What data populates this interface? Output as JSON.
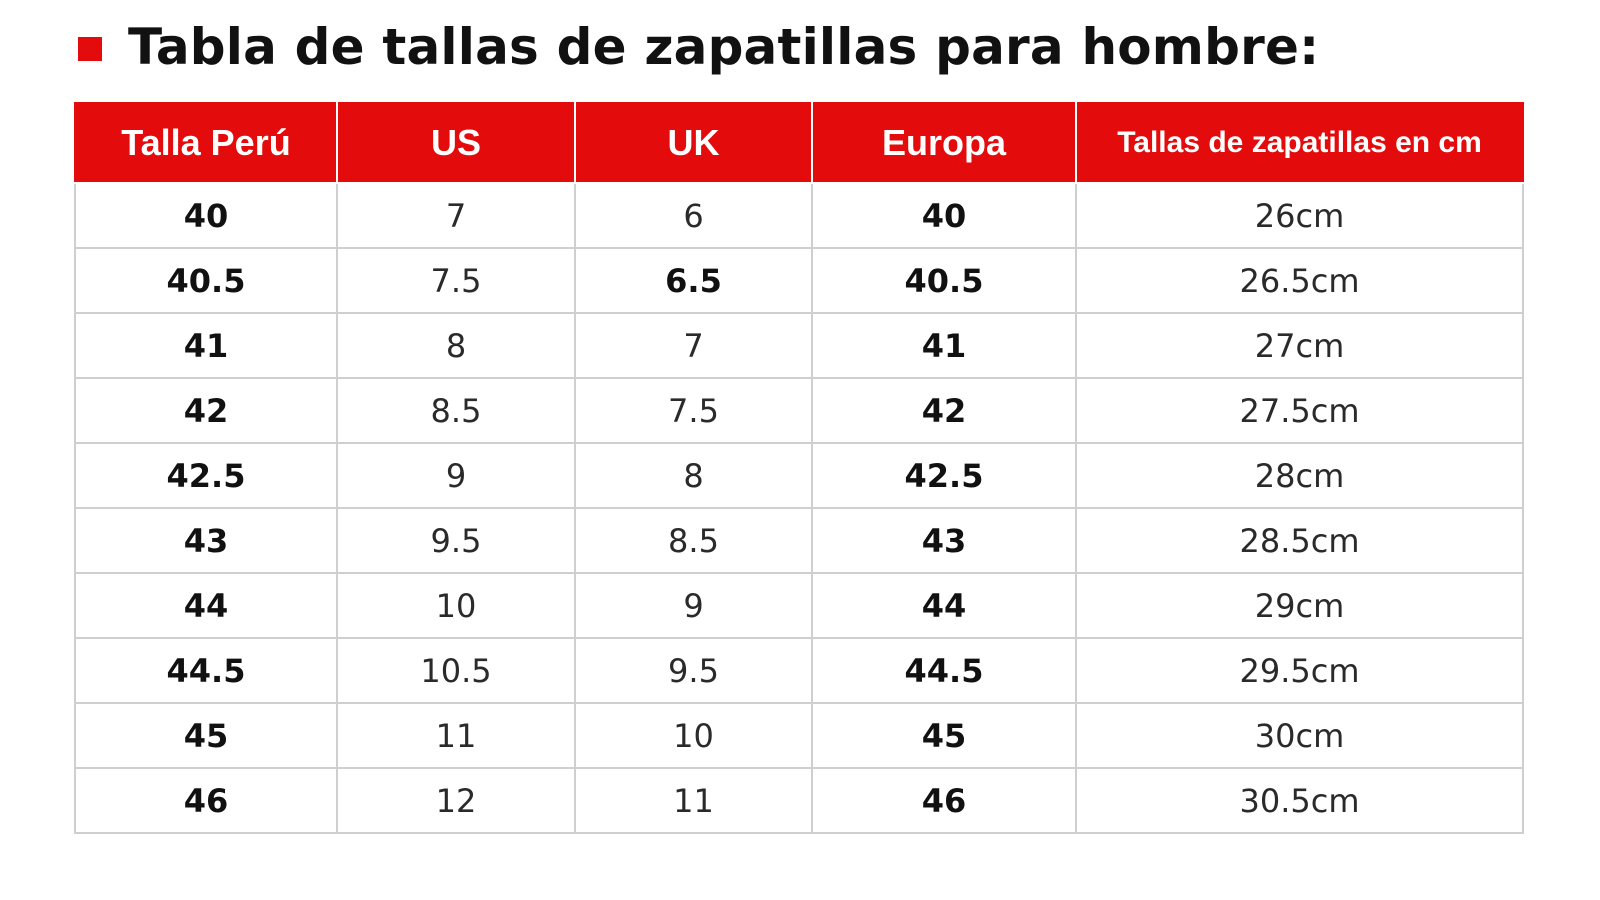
{
  "title": "Tabla de tallas de zapatillas para hombre:",
  "colors": {
    "accent": "#e30b0b",
    "header_text": "#ffffff",
    "border": "#cfcfcf"
  },
  "table": {
    "headers": [
      "Talla Perú",
      "US",
      "UK",
      "Europa",
      "Tallas de zapatillas en cm"
    ],
    "rows": [
      [
        "40",
        "7",
        "6",
        "40",
        "26cm"
      ],
      [
        "40.5",
        "7.5",
        "6.5",
        "40.5",
        "26.5cm"
      ],
      [
        "41",
        "8",
        "7",
        "41",
        "27cm"
      ],
      [
        "42",
        "8.5",
        "7.5",
        "42",
        "27.5cm"
      ],
      [
        "42.5",
        "9",
        "8",
        "42.5",
        "28cm"
      ],
      [
        "43",
        "9.5",
        "8.5",
        "43",
        "28.5cm"
      ],
      [
        "44",
        "10",
        "9",
        "44",
        "29cm"
      ],
      [
        "44.5",
        "10.5",
        "9.5",
        "44.5",
        "29.5cm"
      ],
      [
        "45",
        "11",
        "10",
        "45",
        "30cm"
      ],
      [
        "46",
        "12",
        "11",
        "46",
        "30.5cm"
      ]
    ]
  }
}
